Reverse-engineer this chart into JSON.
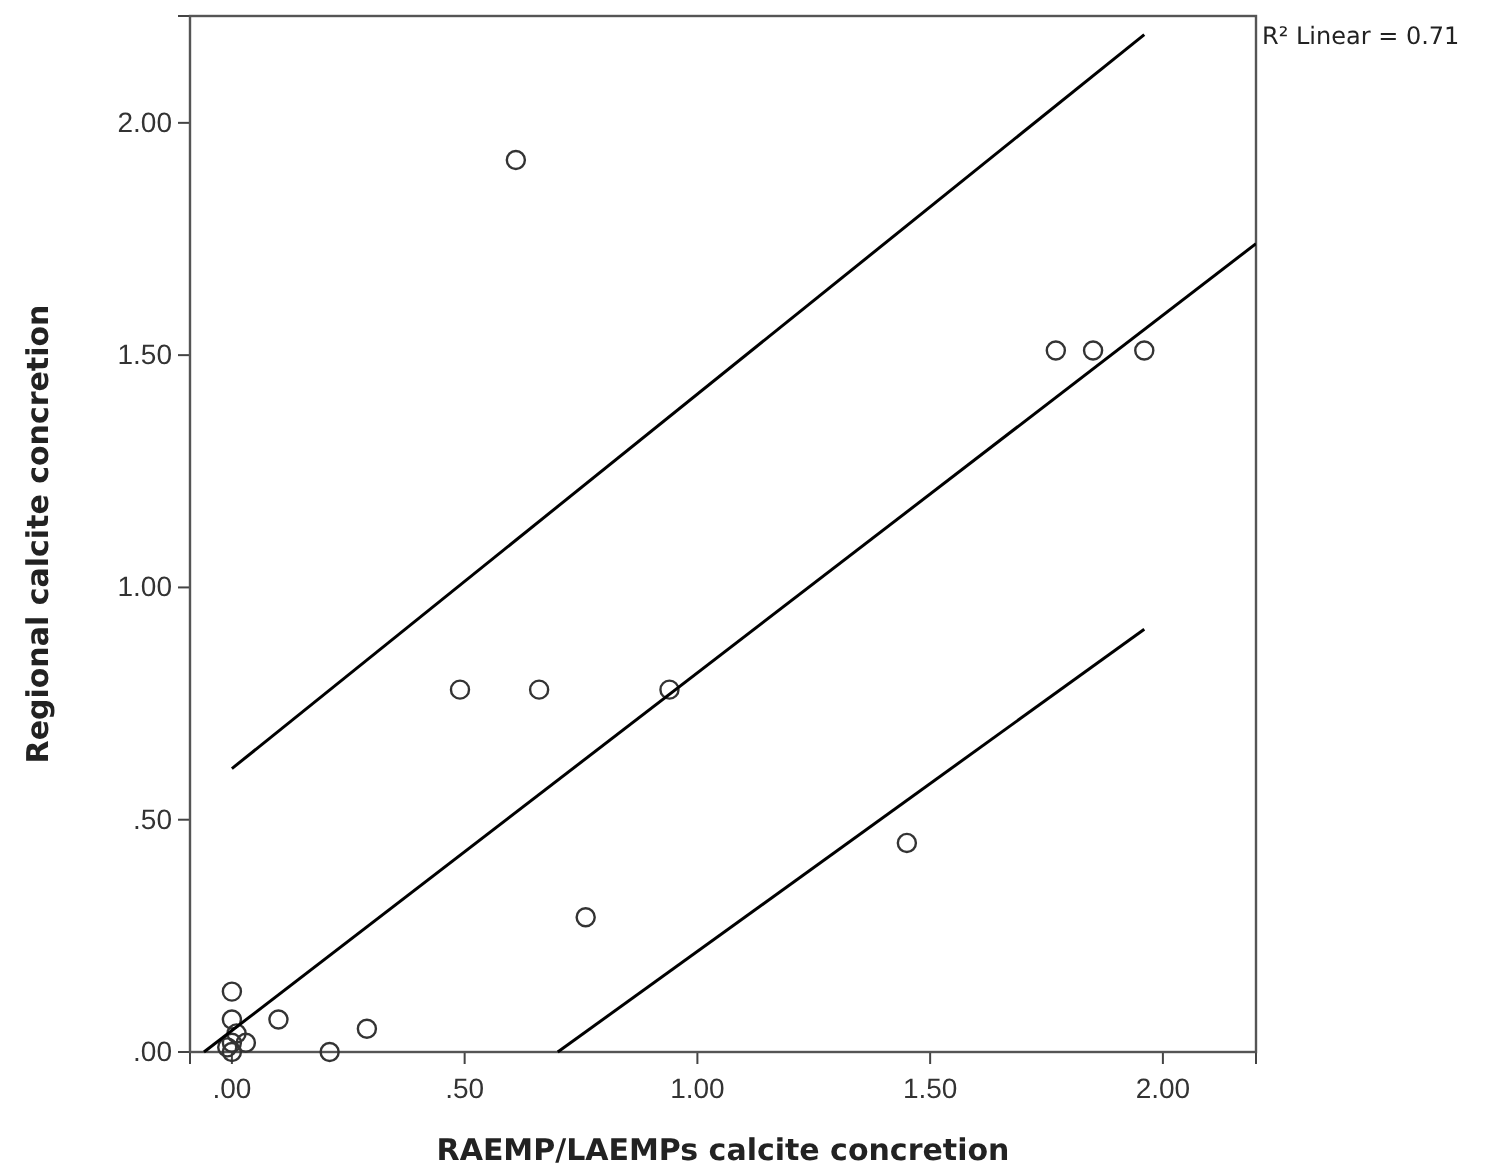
{
  "chart_data": {
    "type": "scatter",
    "xlabel": "RAEMP/LAEMPs calcite concretion",
    "ylabel": "Regional calcite concretion",
    "annotations": [
      "R² Linear = 0.71"
    ],
    "xlim": [
      -0.09,
      2.2
    ],
    "ylim": [
      0,
      2.23
    ],
    "xticks": [
      {
        "value": 0,
        "label": ".00"
      },
      {
        "value": 0.5,
        "label": ".50"
      },
      {
        "value": 1,
        "label": "1.00"
      },
      {
        "value": 1.5,
        "label": "1.50"
      },
      {
        "value": 2,
        "label": "2.00"
      }
    ],
    "yticks": [
      {
        "value": 0,
        "label": ".00"
      },
      {
        "value": 0.5,
        "label": ".50"
      },
      {
        "value": 1,
        "label": "1.00"
      },
      {
        "value": 1.5,
        "label": "1.50"
      },
      {
        "value": 2,
        "label": "2.00"
      }
    ],
    "grid": false,
    "series": [
      {
        "marker": "circle",
        "color": "#333333",
        "x": [
          0.61,
          1.77,
          1.85,
          1.96,
          0.49,
          0.66,
          0.94,
          1.45,
          0.76,
          0,
          0,
          0.1,
          0.29,
          0.21,
          0,
          0,
          0.01,
          0.03,
          -0.01
        ],
        "values": [
          1.92,
          1.51,
          1.51,
          1.51,
          0.78,
          0.78,
          0.78,
          0.45,
          0.29,
          0.13,
          0.07,
          0.07,
          0.05,
          0,
          0,
          0.02,
          0.04,
          0.02,
          0.01
        ]
      },
      {
        "type": "line",
        "marker": "none",
        "color": "#000000",
        "x": [
          -0.06,
          2.2
        ],
        "values": [
          0,
          1.74
        ]
      },
      {
        "type": "line",
        "marker": "none",
        "color": "#000000",
        "x": [
          0,
          1.96
        ],
        "values": [
          0.61,
          2.19
        ]
      },
      {
        "type": "line",
        "marker": "none",
        "color": "#000000",
        "x": [
          0.7,
          1.96
        ],
        "values": [
          0,
          0.91
        ]
      }
    ]
  }
}
